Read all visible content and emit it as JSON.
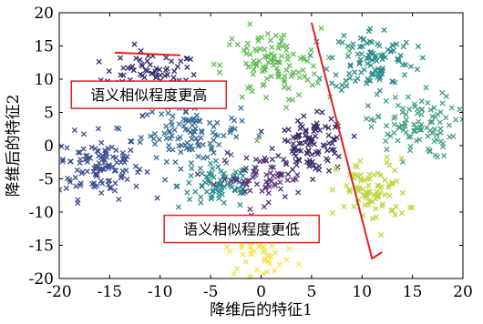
{
  "chart_data": {
    "type": "scatter",
    "title": "",
    "xlabel": "降维后的特征1",
    "ylabel": "降维后的特征2",
    "xlim": [
      -20,
      20
    ],
    "ylim": [
      -20,
      20
    ],
    "xticks": [
      -20,
      -15,
      -10,
      -5,
      0,
      5,
      10,
      15,
      20
    ],
    "yticks": [
      -20,
      -15,
      -10,
      -5,
      0,
      5,
      10,
      15,
      20
    ],
    "marker": "x",
    "grid": false,
    "legend": "none",
    "clusters": [
      {
        "color": "#2e2a6b",
        "center": [
          -11,
          10
        ],
        "spread": [
          3.5,
          3
        ],
        "count": 90
      },
      {
        "color": "#3b4e8e",
        "center": [
          -16,
          -3
        ],
        "spread": [
          3,
          3.5
        ],
        "count": 120
      },
      {
        "color": "#356995",
        "center": [
          -7,
          2
        ],
        "spread": [
          3.5,
          3
        ],
        "count": 110
      },
      {
        "color": "#2c8a8c",
        "center": [
          -4,
          -6
        ],
        "spread": [
          3,
          2.5
        ],
        "count": 90
      },
      {
        "color": "#3a2968",
        "center": [
          5,
          0
        ],
        "spread": [
          2.5,
          3
        ],
        "count": 110
      },
      {
        "color": "#5fba4f",
        "center": [
          1,
          12
        ],
        "spread": [
          3.5,
          4
        ],
        "count": 110
      },
      {
        "color": "#2a8c8a",
        "center": [
          11,
          13
        ],
        "spread": [
          3,
          3.5
        ],
        "count": 110
      },
      {
        "color": "#43a083",
        "center": [
          15,
          3
        ],
        "spread": [
          3,
          3.5
        ],
        "count": 100
      },
      {
        "color": "#bfd43c",
        "center": [
          11,
          -7
        ],
        "spread": [
          2.5,
          3.5
        ],
        "count": 90
      },
      {
        "color": "#f8e34a",
        "center": [
          0,
          -16
        ],
        "spread": [
          2.5,
          2.5
        ],
        "count": 50
      },
      {
        "color": "#5b2f7a",
        "center": [
          0,
          -5
        ],
        "spread": [
          3,
          2.5
        ],
        "count": 60
      }
    ],
    "annotations": [
      {
        "text": "语义相似程度更高",
        "box_anchor": [
          -18.8,
          5.6
        ],
        "line": [
          [
            -14.5,
            14
          ],
          [
            -8,
            13.6
          ]
        ]
      },
      {
        "text": "语义相似程度更低",
        "box_anchor": [
          -9.6,
          -14.6
        ],
        "line": [
          [
            5,
            18.5
          ],
          [
            11,
            -17
          ],
          [
            12,
            -16
          ]
        ]
      }
    ],
    "annotation_color": "#e02020"
  }
}
